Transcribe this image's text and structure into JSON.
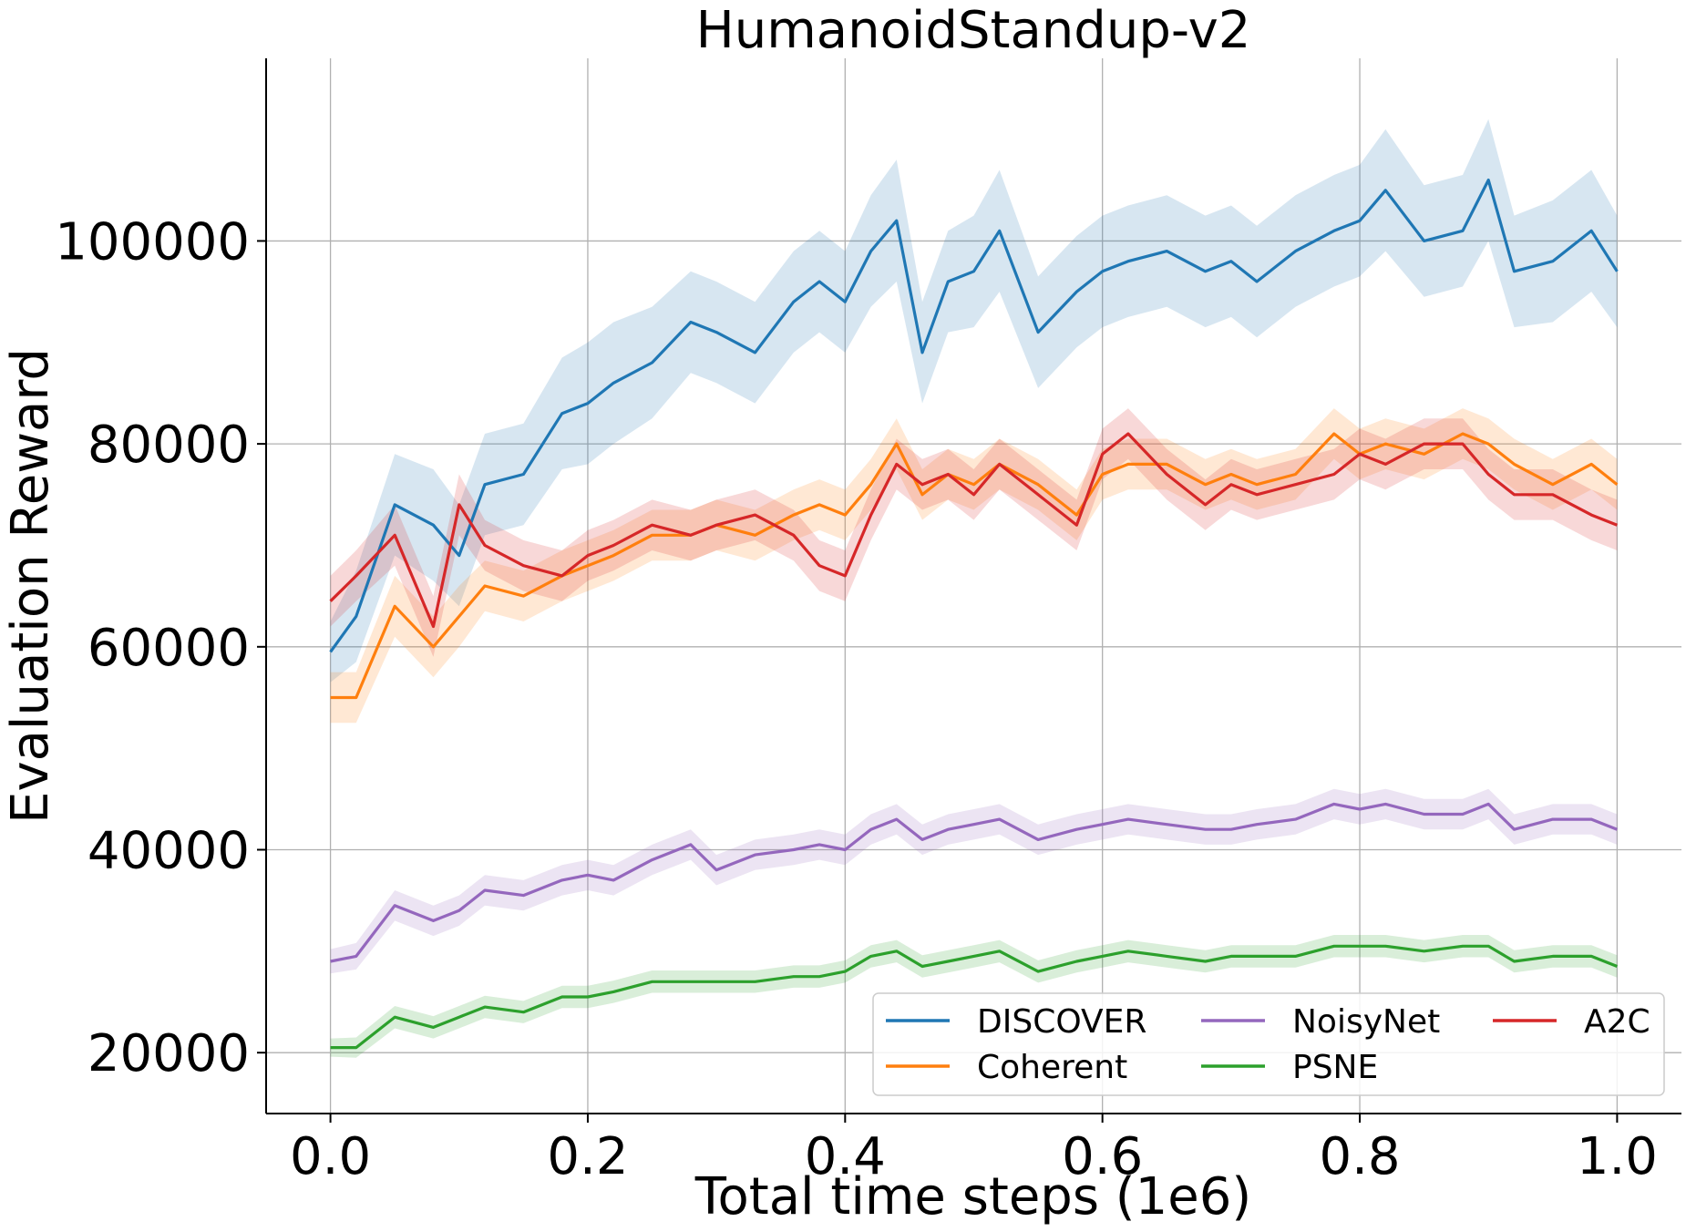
{
  "chart_data": {
    "type": "line",
    "title": "HumanoidStandup-v2",
    "xlabel": "Total time steps (1e6)",
    "ylabel": "Evaluation Reward",
    "xlim": [
      -0.05,
      1.05
    ],
    "ylim": [
      14000,
      118000
    ],
    "xticks": [
      0.0,
      0.2,
      0.4,
      0.6,
      0.8,
      1.0
    ],
    "xtick_labels": [
      "0.0",
      "0.2",
      "0.4",
      "0.6",
      "0.8",
      "1.0"
    ],
    "yticks": [
      20000,
      40000,
      60000,
      80000,
      100000
    ],
    "ytick_labels": [
      "20000",
      "40000",
      "60000",
      "80000",
      "100000"
    ],
    "grid": true,
    "legend_position": "lower-right",
    "x": [
      0.0,
      0.02,
      0.05,
      0.08,
      0.1,
      0.12,
      0.15,
      0.18,
      0.2,
      0.22,
      0.25,
      0.28,
      0.3,
      0.33,
      0.36,
      0.38,
      0.4,
      0.42,
      0.44,
      0.46,
      0.48,
      0.5,
      0.52,
      0.55,
      0.58,
      0.6,
      0.62,
      0.65,
      0.68,
      0.7,
      0.72,
      0.75,
      0.78,
      0.8,
      0.82,
      0.85,
      0.88,
      0.9,
      0.92,
      0.95,
      0.98,
      1.0
    ],
    "series": [
      {
        "name": "DISCOVER",
        "color": "#1f77b4",
        "values": [
          59500,
          63000,
          74000,
          72000,
          69000,
          76000,
          77000,
          83000,
          84000,
          86000,
          88000,
          92000,
          91000,
          89000,
          94000,
          96000,
          94000,
          99000,
          102000,
          89000,
          96000,
          97000,
          101000,
          91000,
          95000,
          97000,
          98000,
          99000,
          97000,
          98000,
          96000,
          99000,
          101000,
          102000,
          105000,
          100000,
          101000,
          106000,
          97000,
          98000,
          101000,
          97000
        ],
        "band": [
          3000,
          4500,
          5000,
          5500,
          5000,
          5000,
          5000,
          5500,
          6000,
          6000,
          5500,
          5000,
          5000,
          5000,
          5000,
          5000,
          5000,
          5500,
          6000,
          5000,
          5000,
          5500,
          6000,
          5500,
          5500,
          5500,
          5500,
          5500,
          5500,
          5500,
          5500,
          5500,
          5500,
          5500,
          6000,
          5500,
          5500,
          6000,
          5500,
          6000,
          6000,
          5500
        ]
      },
      {
        "name": "Coherent",
        "color": "#ff7f0e",
        "values": [
          55000,
          55000,
          64000,
          60000,
          63000,
          66000,
          65000,
          67000,
          68000,
          69000,
          71000,
          71000,
          72000,
          71000,
          73000,
          74000,
          73000,
          76000,
          80000,
          75000,
          77000,
          76000,
          78000,
          76000,
          73000,
          77000,
          78000,
          78000,
          76000,
          77000,
          76000,
          77000,
          81000,
          79000,
          80000,
          79000,
          81000,
          80000,
          78000,
          76000,
          78000,
          76000
        ],
        "band": [
          2500,
          2500,
          3000,
          3000,
          3000,
          2500,
          2500,
          2500,
          2500,
          2500,
          2500,
          2500,
          2500,
          2500,
          2500,
          2500,
          2500,
          2500,
          2500,
          2500,
          2500,
          2500,
          2500,
          2500,
          2500,
          2500,
          2500,
          2500,
          2500,
          2500,
          2500,
          2500,
          2500,
          2500,
          2500,
          2500,
          2500,
          2500,
          2500,
          2500,
          2500,
          2500
        ]
      },
      {
        "name": "NoisyNet",
        "color": "#9467bd",
        "values": [
          29000,
          29500,
          34500,
          33000,
          34000,
          36000,
          35500,
          37000,
          37500,
          37000,
          39000,
          40500,
          38000,
          39500,
          40000,
          40500,
          40000,
          42000,
          43000,
          41000,
          42000,
          42500,
          43000,
          41000,
          42000,
          42500,
          43000,
          42500,
          42000,
          42000,
          42500,
          43000,
          44500,
          44000,
          44500,
          43500,
          43500,
          44500,
          42000,
          43000,
          43000,
          42000
        ],
        "band": [
          1200,
          1300,
          1500,
          1500,
          1500,
          1500,
          1500,
          1500,
          1500,
          1500,
          1500,
          1500,
          1500,
          1500,
          1500,
          1500,
          1500,
          1500,
          1500,
          1500,
          1500,
          1500,
          1500,
          1500,
          1500,
          1500,
          1500,
          1500,
          1500,
          1500,
          1500,
          1500,
          1500,
          1500,
          1500,
          1500,
          1500,
          1500,
          1500,
          1500,
          1500,
          1500
        ]
      },
      {
        "name": "PSNE",
        "color": "#2ca02c",
        "values": [
          20500,
          20500,
          23500,
          22500,
          23500,
          24500,
          24000,
          25500,
          25500,
          26000,
          27000,
          27000,
          27000,
          27000,
          27500,
          27500,
          28000,
          29500,
          30000,
          28500,
          29000,
          29500,
          30000,
          28000,
          29000,
          29500,
          30000,
          29500,
          29000,
          29500,
          29500,
          29500,
          30500,
          30500,
          30500,
          30000,
          30500,
          30500,
          29000,
          29500,
          29500,
          28500
        ],
        "band": [
          900,
          1000,
          1100,
          1100,
          1100,
          1100,
          1100,
          1100,
          1100,
          1100,
          1100,
          1100,
          1100,
          1100,
          1100,
          1100,
          1100,
          1100,
          1100,
          1100,
          1100,
          1100,
          1100,
          1100,
          1100,
          1100,
          1100,
          1100,
          1100,
          1100,
          1100,
          1100,
          1100,
          1100,
          1100,
          1100,
          1100,
          1100,
          1100,
          1100,
          1100,
          1100
        ]
      },
      {
        "name": "A2C",
        "color": "#d62728",
        "values": [
          64500,
          67000,
          71000,
          62000,
          74000,
          70000,
          68000,
          67000,
          69000,
          70000,
          72000,
          71000,
          72000,
          73000,
          71000,
          68000,
          67000,
          73000,
          78000,
          76000,
          77000,
          75000,
          78000,
          75000,
          72000,
          79000,
          81000,
          77000,
          74000,
          76000,
          75000,
          76000,
          77000,
          79000,
          78000,
          80000,
          80000,
          77000,
          75000,
          75000,
          73000,
          72000
        ],
        "band": [
          2500,
          2500,
          3000,
          3000,
          3000,
          2500,
          2500,
          2500,
          2500,
          2500,
          2500,
          2500,
          2500,
          2500,
          2500,
          2500,
          2500,
          2500,
          2500,
          2500,
          2500,
          2500,
          2500,
          2500,
          2500,
          2500,
          2500,
          2500,
          2500,
          2500,
          2500,
          2500,
          2500,
          2500,
          2500,
          2500,
          2500,
          2500,
          2500,
          2500,
          2500,
          2500
        ]
      }
    ]
  }
}
